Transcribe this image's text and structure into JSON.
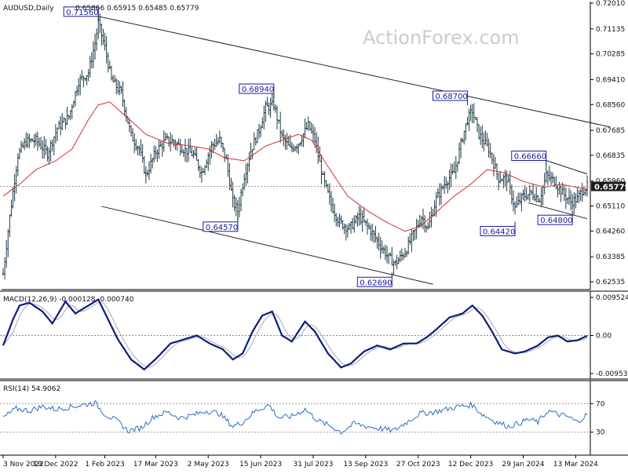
{
  "chart_data": [
    {
      "type": "line",
      "subtype": "ohlc-bars",
      "title": "AUDUSD,Daily",
      "ohlc_readout": "0.65866 0.65915 0.65485 0.65779",
      "watermark": "ActionForex.com",
      "current_price": "0.65779",
      "y_ticks": [
        "0.72010",
        "0.71135",
        "0.70285",
        "0.69410",
        "0.68560",
        "0.67685",
        "0.66835",
        "0.65960",
        "0.65110",
        "0.64260",
        "0.63385",
        "0.62535"
      ],
      "ylim": [
        0.6235,
        0.7201
      ],
      "x_ticks": [
        "3 Nov 2022",
        "19 Dec 2022",
        "1 Feb 2023",
        "17 Mar 2023",
        "2 May 2023",
        "15 Jun 2023",
        "31 Jul 2023",
        "13 Sep 2023",
        "27 Oct 2023",
        "12 Dec 2023",
        "29 Jan 2024",
        "13 Mar 2024"
      ],
      "x_tick_index": [
        0,
        32,
        62,
        93,
        125,
        157,
        189,
        221,
        253,
        285,
        317,
        349
      ],
      "annotations": [
        {
          "label": "0.71560",
          "index": 58,
          "value": 0.7156
        },
        {
          "label": "0.64570",
          "index": 143,
          "value": 0.6457
        },
        {
          "label": "0.68940",
          "index": 165,
          "value": 0.6894
        },
        {
          "label": "0.62690",
          "index": 237,
          "value": 0.6269
        },
        {
          "label": "0.68700",
          "index": 283,
          "value": 0.687
        },
        {
          "label": "0.64420",
          "index": 312,
          "value": 0.6442
        },
        {
          "label": "0.66660",
          "index": 331,
          "value": 0.6666
        },
        {
          "label": "0.64800",
          "index": 347,
          "value": 0.648
        }
      ],
      "trend_lines": [
        {
          "from": [
            58,
            0.7156
          ],
          "to": [
            370,
            0.678
          ]
        },
        {
          "from": [
            60,
            0.651
          ],
          "to": [
            262,
            0.6245
          ]
        },
        {
          "from": [
            331,
            0.6666
          ],
          "to": [
            356,
            0.662
          ]
        },
        {
          "from": [
            320,
            0.6522
          ],
          "to": [
            356,
            0.6468
          ]
        }
      ],
      "close_anchors": [
        {
          "i": 0,
          "v": 0.628
        },
        {
          "i": 4,
          "v": 0.6475
        },
        {
          "i": 9,
          "v": 0.6685
        },
        {
          "i": 14,
          "v": 0.673
        },
        {
          "i": 20,
          "v": 0.6735
        },
        {
          "i": 27,
          "v": 0.669
        },
        {
          "i": 33,
          "v": 0.6775
        },
        {
          "i": 40,
          "v": 0.6815
        },
        {
          "i": 46,
          "v": 0.6935
        },
        {
          "i": 52,
          "v": 0.6965
        },
        {
          "i": 56,
          "v": 0.7065
        },
        {
          "i": 58,
          "v": 0.7135
        },
        {
          "i": 62,
          "v": 0.705
        },
        {
          "i": 66,
          "v": 0.694
        },
        {
          "i": 72,
          "v": 0.6895
        },
        {
          "i": 78,
          "v": 0.675
        },
        {
          "i": 83,
          "v": 0.6705
        },
        {
          "i": 87,
          "v": 0.6615
        },
        {
          "i": 93,
          "v": 0.6695
        },
        {
          "i": 99,
          "v": 0.6735
        },
        {
          "i": 104,
          "v": 0.673
        },
        {
          "i": 110,
          "v": 0.6705
        },
        {
          "i": 116,
          "v": 0.6685
        },
        {
          "i": 121,
          "v": 0.6625
        },
        {
          "i": 127,
          "v": 0.6715
        },
        {
          "i": 132,
          "v": 0.6735
        },
        {
          "i": 136,
          "v": 0.6665
        },
        {
          "i": 140,
          "v": 0.6525
        },
        {
          "i": 143,
          "v": 0.6495
        },
        {
          "i": 147,
          "v": 0.6615
        },
        {
          "i": 151,
          "v": 0.67
        },
        {
          "i": 156,
          "v": 0.677
        },
        {
          "i": 160,
          "v": 0.6845
        },
        {
          "i": 165,
          "v": 0.6855
        },
        {
          "i": 170,
          "v": 0.6745
        },
        {
          "i": 175,
          "v": 0.6705
        },
        {
          "i": 180,
          "v": 0.6725
        },
        {
          "i": 186,
          "v": 0.6785
        },
        {
          "i": 190,
          "v": 0.6735
        },
        {
          "i": 195,
          "v": 0.6605
        },
        {
          "i": 200,
          "v": 0.6515
        },
        {
          "i": 205,
          "v": 0.6455
        },
        {
          "i": 211,
          "v": 0.6435
        },
        {
          "i": 217,
          "v": 0.6475
        },
        {
          "i": 223,
          "v": 0.6435
        },
        {
          "i": 229,
          "v": 0.6385
        },
        {
          "i": 235,
          "v": 0.6335
        },
        {
          "i": 239,
          "v": 0.6315
        },
        {
          "i": 245,
          "v": 0.6355
        },
        {
          "i": 251,
          "v": 0.6425
        },
        {
          "i": 255,
          "v": 0.6475
        },
        {
          "i": 259,
          "v": 0.6435
        },
        {
          "i": 264,
          "v": 0.6535
        },
        {
          "i": 270,
          "v": 0.6595
        },
        {
          "i": 275,
          "v": 0.6625
        },
        {
          "i": 280,
          "v": 0.6745
        },
        {
          "i": 283,
          "v": 0.6805
        },
        {
          "i": 286,
          "v": 0.6835
        },
        {
          "i": 290,
          "v": 0.6755
        },
        {
          "i": 296,
          "v": 0.6705
        },
        {
          "i": 302,
          "v": 0.6605
        },
        {
          "i": 307,
          "v": 0.6605
        },
        {
          "i": 312,
          "v": 0.6505
        },
        {
          "i": 317,
          "v": 0.6545
        },
        {
          "i": 322,
          "v": 0.6555
        },
        {
          "i": 327,
          "v": 0.6535
        },
        {
          "i": 331,
          "v": 0.6615
        },
        {
          "i": 336,
          "v": 0.6595
        },
        {
          "i": 341,
          "v": 0.6555
        },
        {
          "i": 346,
          "v": 0.6525
        },
        {
          "i": 350,
          "v": 0.6535
        },
        {
          "i": 353,
          "v": 0.6565
        },
        {
          "i": 356,
          "v": 0.6578
        }
      ],
      "ma_anchors": [
        {
          "i": 0,
          "v": 0.6545
        },
        {
          "i": 10,
          "v": 0.6585
        },
        {
          "i": 20,
          "v": 0.6635
        },
        {
          "i": 32,
          "v": 0.6665
        },
        {
          "i": 42,
          "v": 0.6705
        },
        {
          "i": 52,
          "v": 0.6805
        },
        {
          "i": 58,
          "v": 0.6855
        },
        {
          "i": 65,
          "v": 0.6865
        },
        {
          "i": 75,
          "v": 0.6815
        },
        {
          "i": 87,
          "v": 0.6755
        },
        {
          "i": 100,
          "v": 0.6725
        },
        {
          "i": 115,
          "v": 0.6715
        },
        {
          "i": 125,
          "v": 0.6705
        },
        {
          "i": 135,
          "v": 0.6675
        },
        {
          "i": 147,
          "v": 0.6665
        },
        {
          "i": 160,
          "v": 0.6715
        },
        {
          "i": 170,
          "v": 0.6735
        },
        {
          "i": 180,
          "v": 0.6755
        },
        {
          "i": 188,
          "v": 0.6735
        },
        {
          "i": 198,
          "v": 0.6645
        },
        {
          "i": 210,
          "v": 0.6545
        },
        {
          "i": 222,
          "v": 0.6495
        },
        {
          "i": 234,
          "v": 0.6455
        },
        {
          "i": 245,
          "v": 0.6425
        },
        {
          "i": 255,
          "v": 0.6445
        },
        {
          "i": 265,
          "v": 0.6495
        },
        {
          "i": 275,
          "v": 0.6545
        },
        {
          "i": 285,
          "v": 0.6585
        },
        {
          "i": 295,
          "v": 0.6635
        },
        {
          "i": 305,
          "v": 0.6625
        },
        {
          "i": 317,
          "v": 0.6595
        },
        {
          "i": 330,
          "v": 0.6575
        },
        {
          "i": 340,
          "v": 0.6585
        },
        {
          "i": 356,
          "v": 0.6568
        }
      ]
    },
    {
      "type": "line",
      "title": "MACD(12,26,9) -0.000128 -0.000740",
      "y_ticks": [
        "0.009524",
        "0.00",
        "-0.00953"
      ],
      "ylim": [
        -0.0105,
        0.0107
      ],
      "macd_anchors": [
        {
          "i": 0,
          "v": -0.0025
        },
        {
          "i": 6,
          "v": 0.004
        },
        {
          "i": 10,
          "v": 0.0075
        },
        {
          "i": 16,
          "v": 0.0082
        },
        {
          "i": 24,
          "v": 0.006
        },
        {
          "i": 30,
          "v": 0.003
        },
        {
          "i": 38,
          "v": 0.0085
        },
        {
          "i": 44,
          "v": 0.0055
        },
        {
          "i": 52,
          "v": 0.0075
        },
        {
          "i": 58,
          "v": 0.009
        },
        {
          "i": 64,
          "v": 0.004
        },
        {
          "i": 70,
          "v": -0.001
        },
        {
          "i": 78,
          "v": -0.006
        },
        {
          "i": 86,
          "v": -0.0085
        },
        {
          "i": 94,
          "v": -0.0055
        },
        {
          "i": 102,
          "v": -0.002
        },
        {
          "i": 110,
          "v": -0.001
        },
        {
          "i": 118,
          "v": 0.0
        },
        {
          "i": 126,
          "v": -0.002
        },
        {
          "i": 134,
          "v": -0.0035
        },
        {
          "i": 140,
          "v": -0.006
        },
        {
          "i": 146,
          "v": -0.0045
        },
        {
          "i": 152,
          "v": 0.001
        },
        {
          "i": 158,
          "v": 0.005
        },
        {
          "i": 164,
          "v": 0.006
        },
        {
          "i": 170,
          "v": 0.0
        },
        {
          "i": 176,
          "v": -0.0015
        },
        {
          "i": 184,
          "v": 0.0035
        },
        {
          "i": 190,
          "v": 0.001
        },
        {
          "i": 198,
          "v": -0.0045
        },
        {
          "i": 206,
          "v": -0.008
        },
        {
          "i": 212,
          "v": -0.007
        },
        {
          "i": 220,
          "v": -0.004
        },
        {
          "i": 228,
          "v": -0.0025
        },
        {
          "i": 236,
          "v": -0.0035
        },
        {
          "i": 244,
          "v": -0.002
        },
        {
          "i": 252,
          "v": -0.002
        },
        {
          "i": 258,
          "v": -0.0005
        },
        {
          "i": 264,
          "v": 0.0015
        },
        {
          "i": 272,
          "v": 0.0045
        },
        {
          "i": 280,
          "v": 0.0055
        },
        {
          "i": 286,
          "v": 0.0075
        },
        {
          "i": 292,
          "v": 0.005
        },
        {
          "i": 298,
          "v": 0.001
        },
        {
          "i": 304,
          "v": -0.0035
        },
        {
          "i": 312,
          "v": -0.0045
        },
        {
          "i": 318,
          "v": -0.004
        },
        {
          "i": 326,
          "v": -0.0025
        },
        {
          "i": 332,
          "v": -0.0005
        },
        {
          "i": 338,
          "v": 0.0
        },
        {
          "i": 344,
          "v": -0.0015
        },
        {
          "i": 350,
          "v": -0.0012
        },
        {
          "i": 356,
          "v": -0.0001
        }
      ],
      "signal_lag": 4
    },
    {
      "type": "line",
      "title": "RSI(14) 54.9062",
      "y_ticks": [
        "70",
        "30"
      ],
      "ylim": [
        0,
        100
      ],
      "rsi_anchors": [
        {
          "i": 0,
          "v": 50
        },
        {
          "i": 8,
          "v": 63
        },
        {
          "i": 16,
          "v": 60
        },
        {
          "i": 24,
          "v": 66
        },
        {
          "i": 32,
          "v": 62
        },
        {
          "i": 40,
          "v": 65
        },
        {
          "i": 48,
          "v": 68
        },
        {
          "i": 56,
          "v": 71
        },
        {
          "i": 62,
          "v": 55
        },
        {
          "i": 70,
          "v": 45
        },
        {
          "i": 76,
          "v": 32
        },
        {
          "i": 84,
          "v": 36
        },
        {
          "i": 92,
          "v": 52
        },
        {
          "i": 100,
          "v": 58
        },
        {
          "i": 108,
          "v": 50
        },
        {
          "i": 116,
          "v": 54
        },
        {
          "i": 124,
          "v": 60
        },
        {
          "i": 132,
          "v": 56
        },
        {
          "i": 140,
          "v": 38
        },
        {
          "i": 146,
          "v": 44
        },
        {
          "i": 154,
          "v": 60
        },
        {
          "i": 162,
          "v": 68
        },
        {
          "i": 168,
          "v": 50
        },
        {
          "i": 176,
          "v": 52
        },
        {
          "i": 184,
          "v": 62
        },
        {
          "i": 192,
          "v": 46
        },
        {
          "i": 200,
          "v": 38
        },
        {
          "i": 206,
          "v": 30
        },
        {
          "i": 214,
          "v": 42
        },
        {
          "i": 222,
          "v": 38
        },
        {
          "i": 230,
          "v": 35
        },
        {
          "i": 238,
          "v": 32
        },
        {
          "i": 246,
          "v": 44
        },
        {
          "i": 254,
          "v": 56
        },
        {
          "i": 262,
          "v": 58
        },
        {
          "i": 270,
          "v": 62
        },
        {
          "i": 278,
          "v": 66
        },
        {
          "i": 286,
          "v": 68
        },
        {
          "i": 292,
          "v": 55
        },
        {
          "i": 300,
          "v": 45
        },
        {
          "i": 308,
          "v": 38
        },
        {
          "i": 314,
          "v": 42
        },
        {
          "i": 320,
          "v": 48
        },
        {
          "i": 326,
          "v": 44
        },
        {
          "i": 332,
          "v": 60
        },
        {
          "i": 338,
          "v": 55
        },
        {
          "i": 344,
          "v": 52
        },
        {
          "i": 350,
          "v": 44
        },
        {
          "i": 356,
          "v": 55
        }
      ]
    }
  ],
  "total_bars": 357
}
